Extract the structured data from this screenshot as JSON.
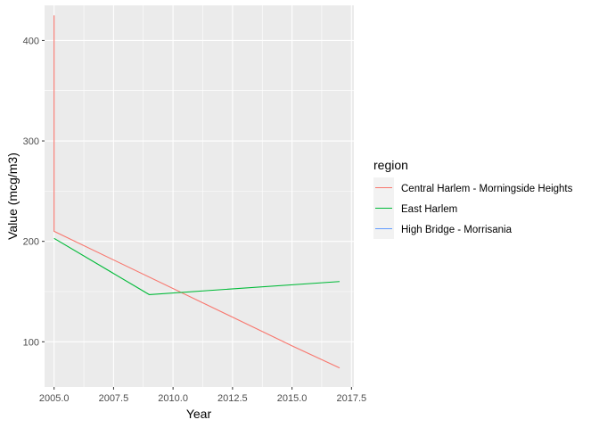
{
  "chart_data": {
    "type": "line",
    "title": "",
    "xlabel": "Year",
    "ylabel": "Value (mcg/m3)",
    "xlim": [
      2004.6,
      2017.6
    ],
    "ylim": [
      55,
      435
    ],
    "x_ticks": [
      2005.0,
      2007.5,
      2010.0,
      2012.5,
      2015.0,
      2017.5
    ],
    "x_tick_labels": [
      "2005.0",
      "2007.5",
      "2010.0",
      "2012.5",
      "2015.0",
      "2017.5"
    ],
    "y_ticks": [
      100,
      200,
      300,
      400
    ],
    "y_tick_labels": [
      "100",
      "200",
      "300",
      "400"
    ],
    "grid": true,
    "legend": {
      "title": "region",
      "placement": "right"
    },
    "series": [
      {
        "name": "Central Harlem - Morningside Heights",
        "color": "#f8766d",
        "points": [
          [
            2005,
            425
          ],
          [
            2005,
            210
          ],
          [
            2015,
            96
          ],
          [
            2017,
            74
          ]
        ]
      },
      {
        "name": "East Harlem",
        "color": "#00ba38",
        "points": [
          [
            2005,
            203
          ],
          [
            2009,
            147
          ],
          [
            2017,
            160
          ]
        ]
      },
      {
        "name": "High Bridge - Morrisania",
        "color": "#619cff",
        "points": []
      }
    ]
  }
}
